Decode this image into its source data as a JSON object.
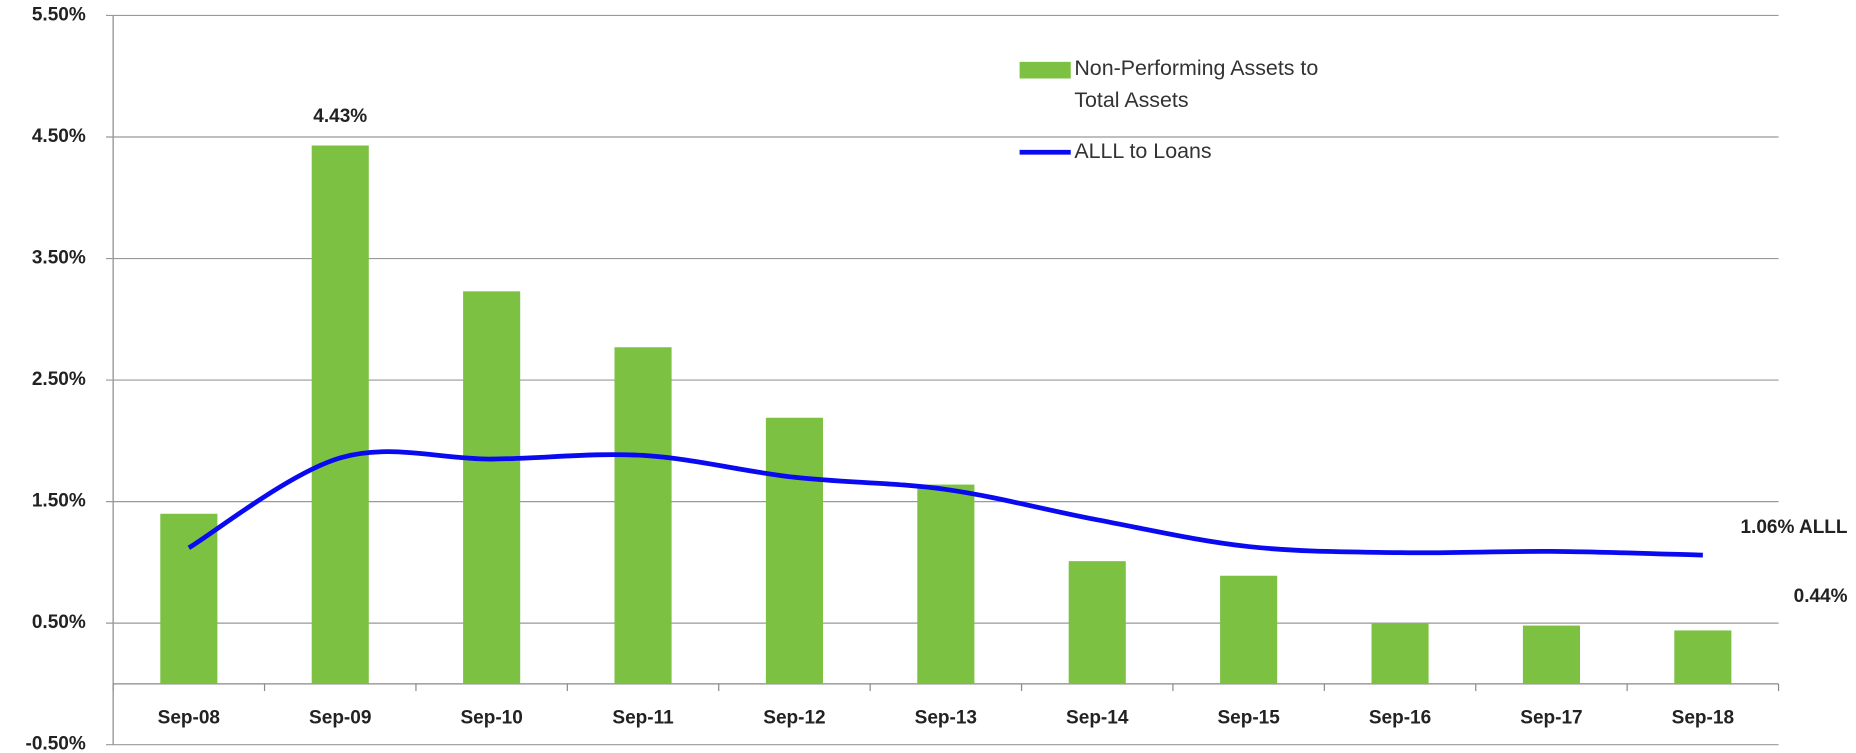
{
  "chart_data": {
    "type": "bar-line",
    "categories": [
      "Sep-08",
      "Sep-09",
      "Sep-10",
      "Sep-11",
      "Sep-12",
      "Sep-13",
      "Sep-14",
      "Sep-15",
      "Sep-16",
      "Sep-17",
      "Sep-18"
    ],
    "series": [
      {
        "name": "Non-Performing Assets to Total Assets",
        "type": "bar",
        "color": "#7dc142",
        "values": [
          1.4,
          4.43,
          3.23,
          2.77,
          2.19,
          1.64,
          1.01,
          0.89,
          0.5,
          0.48,
          0.44
        ],
        "value_labels": [
          null,
          "4.43%",
          null,
          null,
          null,
          null,
          null,
          null,
          null,
          null,
          "0.44%"
        ]
      },
      {
        "name": "ALLL to Loans",
        "type": "line",
        "color": "#0a0af0",
        "values": [
          1.12,
          1.86,
          1.85,
          1.88,
          1.7,
          1.6,
          1.35,
          1.13,
          1.08,
          1.09,
          1.06
        ],
        "value_labels": [
          null,
          null,
          null,
          null,
          null,
          null,
          null,
          null,
          null,
          null,
          "1.06% ALLL"
        ]
      }
    ],
    "ylim": [
      -0.5,
      5.5
    ],
    "yticks": [
      {
        "value": -0.5,
        "label": "-0.50%"
      },
      {
        "value": 0.5,
        "label": "0.50%"
      },
      {
        "value": 1.5,
        "label": "1.50%"
      },
      {
        "value": 2.5,
        "label": "2.50%"
      },
      {
        "value": 3.5,
        "label": "3.50%"
      },
      {
        "value": 4.5,
        "label": "4.50%"
      },
      {
        "value": 5.5,
        "label": "5.50%"
      }
    ],
    "grid": true,
    "legend": "top-center"
  }
}
